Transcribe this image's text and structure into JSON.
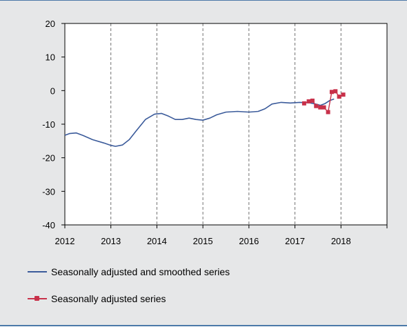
{
  "chart_data": {
    "type": "line",
    "title": "",
    "xlabel": "",
    "ylabel": "",
    "xlim": [
      2012,
      2019
    ],
    "ylim": [
      -40,
      20
    ],
    "x_ticks": [
      2012,
      2013,
      2014,
      2015,
      2016,
      2017,
      2018
    ],
    "y_ticks": [
      20,
      10,
      0,
      -10,
      -20,
      -30,
      -40
    ],
    "vertical_gridlines": [
      2013,
      2014,
      2015,
      2016,
      2017,
      2018
    ],
    "legend_position": "bottom",
    "series": [
      {
        "name": "Seasonally adjusted and smoothed series",
        "color": "#3a5a9a",
        "markers": false,
        "points": [
          [
            2012.0,
            -13.3
          ],
          [
            2012.1,
            -12.8
          ],
          [
            2012.25,
            -12.6
          ],
          [
            2012.4,
            -13.4
          ],
          [
            2012.6,
            -14.6
          ],
          [
            2012.85,
            -15.6
          ],
          [
            2013.0,
            -16.3
          ],
          [
            2013.1,
            -16.6
          ],
          [
            2013.25,
            -16.2
          ],
          [
            2013.4,
            -14.6
          ],
          [
            2013.55,
            -12.0
          ],
          [
            2013.75,
            -8.6
          ],
          [
            2013.95,
            -7.0
          ],
          [
            2014.1,
            -6.8
          ],
          [
            2014.25,
            -7.6
          ],
          [
            2014.4,
            -8.6
          ],
          [
            2014.55,
            -8.6
          ],
          [
            2014.7,
            -8.2
          ],
          [
            2014.85,
            -8.6
          ],
          [
            2015.0,
            -8.8
          ],
          [
            2015.15,
            -8.2
          ],
          [
            2015.3,
            -7.2
          ],
          [
            2015.5,
            -6.4
          ],
          [
            2015.75,
            -6.2
          ],
          [
            2016.0,
            -6.4
          ],
          [
            2016.2,
            -6.2
          ],
          [
            2016.35,
            -5.4
          ],
          [
            2016.5,
            -4.0
          ],
          [
            2016.7,
            -3.5
          ],
          [
            2016.9,
            -3.7
          ],
          [
            2017.1,
            -3.5
          ],
          [
            2017.3,
            -3.6
          ],
          [
            2017.45,
            -4.0
          ],
          [
            2017.55,
            -4.4
          ],
          [
            2017.65,
            -3.9
          ],
          [
            2017.75,
            -3.0
          ],
          [
            2017.85,
            -2.5
          ]
        ]
      },
      {
        "name": "Seasonally adjusted series",
        "color": "#c8314a",
        "markers": true,
        "points": [
          [
            2017.2,
            -3.8
          ],
          [
            2017.3,
            -3.2
          ],
          [
            2017.38,
            -3.0
          ],
          [
            2017.46,
            -4.6
          ],
          [
            2017.55,
            -5.0
          ],
          [
            2017.63,
            -5.0
          ],
          [
            2017.72,
            -6.4
          ],
          [
            2017.8,
            -0.4
          ],
          [
            2017.88,
            -0.2
          ],
          [
            2017.96,
            -1.8
          ],
          [
            2018.05,
            -1.2
          ]
        ]
      }
    ]
  }
}
